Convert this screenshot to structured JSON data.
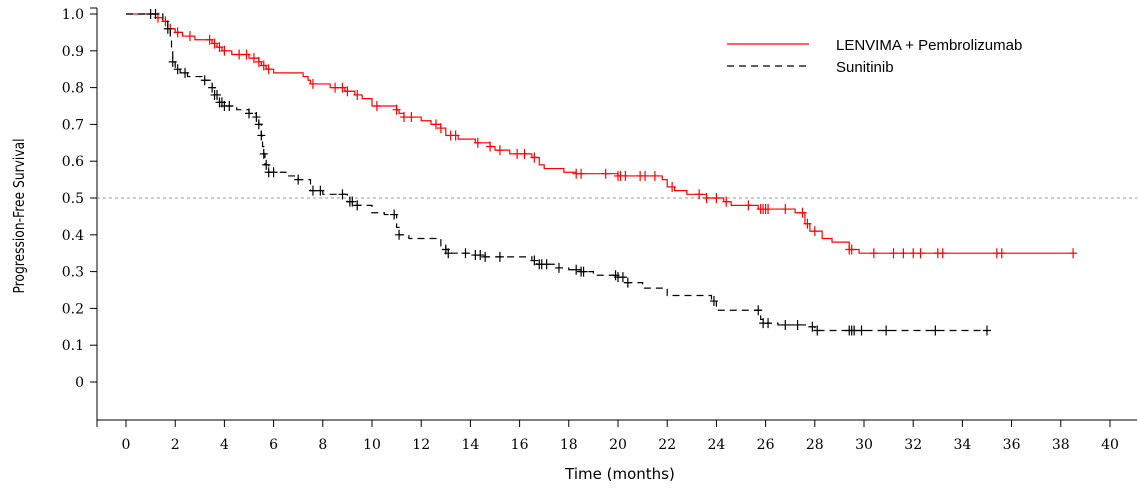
{
  "chart_data": {
    "type": "line",
    "title": "",
    "xlabel": "Time (months)",
    "ylabel": "Progression-Free Survival",
    "xlim": [
      0,
      40
    ],
    "ylim": [
      -0.1,
      1.0
    ],
    "x_ticks": [
      "0",
      "2",
      "4",
      "6",
      "8",
      "10",
      "12",
      "14",
      "16",
      "18",
      "20",
      "22",
      "24",
      "26",
      "28",
      "30",
      "32",
      "34",
      "36",
      "38",
      "40"
    ],
    "y_ticks": [
      "0",
      "0.1",
      "0.2",
      "0.3",
      "0.4",
      "0.5",
      "0.6",
      "0.7",
      "0.8",
      "0.9",
      "1.0"
    ],
    "reference_line": 0.5,
    "legend_position": "top-right",
    "grid": false,
    "series": [
      {
        "name": "LENVIMA + Pembrolizumab",
        "color": "#ff0000",
        "line_style": "solid",
        "steps": [
          [
            0,
            1.0
          ],
          [
            1.2,
            0.99
          ],
          [
            1.5,
            0.98
          ],
          [
            1.7,
            0.96
          ],
          [
            2.0,
            0.95
          ],
          [
            2.3,
            0.94
          ],
          [
            2.8,
            0.93
          ],
          [
            3.5,
            0.92
          ],
          [
            3.7,
            0.91
          ],
          [
            3.9,
            0.9
          ],
          [
            4.3,
            0.89
          ],
          [
            5.0,
            0.88
          ],
          [
            5.4,
            0.87
          ],
          [
            5.5,
            0.86
          ],
          [
            5.7,
            0.85
          ],
          [
            6.0,
            0.84
          ],
          [
            7.2,
            0.83
          ],
          [
            7.4,
            0.82
          ],
          [
            7.5,
            0.81
          ],
          [
            8.3,
            0.8
          ],
          [
            8.9,
            0.79
          ],
          [
            9.3,
            0.78
          ],
          [
            9.6,
            0.77
          ],
          [
            10.0,
            0.75
          ],
          [
            11.0,
            0.74
          ],
          [
            11.1,
            0.73
          ],
          [
            11.3,
            0.72
          ],
          [
            12.0,
            0.71
          ],
          [
            12.4,
            0.7
          ],
          [
            12.8,
            0.69
          ],
          [
            13.0,
            0.67
          ],
          [
            13.5,
            0.66
          ],
          [
            14.2,
            0.65
          ],
          [
            14.8,
            0.64
          ],
          [
            15.0,
            0.63
          ],
          [
            15.6,
            0.62
          ],
          [
            16.5,
            0.61
          ],
          [
            16.8,
            0.59
          ],
          [
            17.0,
            0.58
          ],
          [
            17.8,
            0.57
          ],
          [
            18.3,
            0.566
          ],
          [
            20.0,
            0.56
          ],
          [
            21.8,
            0.55
          ],
          [
            22.0,
            0.53
          ],
          [
            22.3,
            0.52
          ],
          [
            22.8,
            0.51
          ],
          [
            23.6,
            0.5
          ],
          [
            24.3,
            0.49
          ],
          [
            24.6,
            0.48
          ],
          [
            25.7,
            0.47
          ],
          [
            27.2,
            0.46
          ],
          [
            27.6,
            0.43
          ],
          [
            27.8,
            0.41
          ],
          [
            28.3,
            0.39
          ],
          [
            28.7,
            0.38
          ],
          [
            29.4,
            0.36
          ],
          [
            29.8,
            0.35
          ]
        ],
        "end_x": 38.6,
        "censor_times": [
          1.3,
          1.6,
          1.8,
          2.1,
          2.6,
          3.4,
          3.6,
          3.8,
          4.0,
          4.6,
          4.9,
          5.2,
          5.4,
          5.6,
          5.8,
          7.6,
          8.5,
          8.8,
          9.0,
          9.4,
          10.2,
          11.0,
          11.3,
          11.6,
          12.6,
          12.8,
          13.2,
          13.4,
          14.3,
          14.8,
          15.2,
          15.9,
          16.2,
          16.6,
          18.3,
          18.5,
          19.5,
          20.0,
          20.1,
          20.3,
          20.9,
          21.1,
          21.5,
          22.2,
          23.3,
          23.6,
          24.0,
          24.4,
          25.3,
          25.8,
          25.9,
          26.0,
          26.1,
          26.8,
          27.5,
          27.7,
          28.0,
          29.4,
          29.5,
          30.4,
          31.2,
          31.6,
          32.0,
          32.3,
          33.0,
          33.2,
          35.4,
          35.6,
          38.5
        ]
      },
      {
        "name": "Sunitinib",
        "color": "#000000",
        "line_style": "dashed",
        "steps": [
          [
            0,
            1.0
          ],
          [
            1.5,
            0.98
          ],
          [
            1.7,
            0.96
          ],
          [
            1.8,
            0.94
          ],
          [
            1.85,
            0.9
          ],
          [
            1.9,
            0.87
          ],
          [
            2.0,
            0.85
          ],
          [
            2.2,
            0.84
          ],
          [
            2.5,
            0.83
          ],
          [
            3.2,
            0.82
          ],
          [
            3.5,
            0.8
          ],
          [
            3.6,
            0.78
          ],
          [
            3.8,
            0.76
          ],
          [
            4.0,
            0.75
          ],
          [
            4.5,
            0.74
          ],
          [
            5.0,
            0.73
          ],
          [
            5.3,
            0.72
          ],
          [
            5.4,
            0.7
          ],
          [
            5.5,
            0.67
          ],
          [
            5.55,
            0.64
          ],
          [
            5.6,
            0.62
          ],
          [
            5.65,
            0.59
          ],
          [
            5.8,
            0.57
          ],
          [
            6.5,
            0.56
          ],
          [
            7.0,
            0.55
          ],
          [
            7.5,
            0.52
          ],
          [
            8.0,
            0.51
          ],
          [
            9.0,
            0.49
          ],
          [
            9.3,
            0.48
          ],
          [
            10.0,
            0.46
          ],
          [
            10.5,
            0.455
          ],
          [
            11.0,
            0.42
          ],
          [
            11.1,
            0.4
          ],
          [
            11.5,
            0.39
          ],
          [
            12.8,
            0.37
          ],
          [
            13.0,
            0.36
          ],
          [
            13.1,
            0.35
          ],
          [
            14.0,
            0.345
          ],
          [
            14.6,
            0.34
          ],
          [
            16.5,
            0.33
          ],
          [
            16.7,
            0.32
          ],
          [
            17.5,
            0.31
          ],
          [
            18.0,
            0.305
          ],
          [
            18.5,
            0.3
          ],
          [
            19.0,
            0.29
          ],
          [
            20.0,
            0.285
          ],
          [
            20.3,
            0.27
          ],
          [
            21.0,
            0.255
          ],
          [
            22.0,
            0.235
          ],
          [
            23.8,
            0.22
          ],
          [
            24.0,
            0.195
          ],
          [
            25.8,
            0.17
          ],
          [
            25.9,
            0.16
          ],
          [
            26.5,
            0.155
          ],
          [
            27.8,
            0.15
          ],
          [
            28.0,
            0.14
          ]
        ],
        "end_x": 35.0,
        "censor_times": [
          1.0,
          1.2,
          1.7,
          1.9,
          2.1,
          2.4,
          3.2,
          3.5,
          3.6,
          3.7,
          3.8,
          3.9,
          4.0,
          4.2,
          5.0,
          5.3,
          5.4,
          5.5,
          5.6,
          5.7,
          5.8,
          6.0,
          7.0,
          7.6,
          7.9,
          8.8,
          9.1,
          9.2,
          9.4,
          10.9,
          11.1,
          13.0,
          13.1,
          13.8,
          14.2,
          14.4,
          14.6,
          15.2,
          16.6,
          16.8,
          16.9,
          17.1,
          17.6,
          18.3,
          18.5,
          18.6,
          19.9,
          20.0,
          20.2,
          20.4,
          23.9,
          25.7,
          25.9,
          26.1,
          26.8,
          27.3,
          27.9,
          28.1,
          29.4,
          29.5,
          29.6,
          29.9,
          30.9,
          32.9,
          35.0
        ]
      }
    ]
  }
}
